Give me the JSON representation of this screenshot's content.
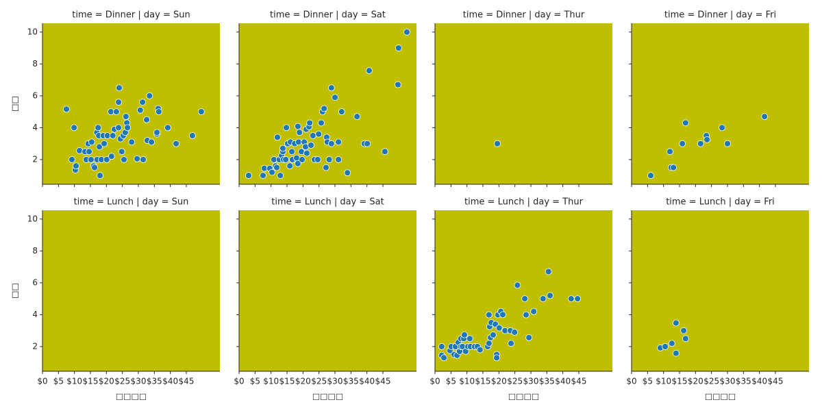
{
  "chart_data": [
    {
      "type": "scatter",
      "title": "time = Dinner | day = Sun",
      "color": "#1f77b4",
      "facecolor": "#bfbf00",
      "ylabel": "□□",
      "x": [
        7.5,
        9.2,
        9.9,
        10.3,
        10.5,
        11.6,
        13.3,
        13.7,
        14.3,
        14.6,
        15.2,
        15.4,
        16,
        16.3,
        17,
        17.1,
        17.4,
        17.6,
        17.8,
        18,
        18.4,
        19,
        19.3,
        20.1,
        20.3,
        21.4,
        21.6,
        22,
        22.5,
        23.1,
        23.8,
        23.8,
        24,
        24.4,
        24.8,
        25.3,
        25.5,
        25.9,
        26.1,
        26.4,
        26.6,
        27.9,
        29.6,
        30.6,
        31.3,
        31.5,
        32.6,
        32.8,
        33.5,
        34.1,
        35.8,
        35.8,
        36.2,
        36.4,
        39.2,
        41.8,
        46.9,
        49.7
      ],
      "values": [
        5.16,
        2,
        4,
        1.35,
        1.6,
        2.56,
        2.5,
        2,
        3,
        2.5,
        2,
        3.1,
        1.6,
        1.5,
        3.7,
        2,
        4,
        3.5,
        2.8,
        1,
        2,
        3.5,
        3,
        2,
        3.5,
        5,
        2.2,
        3.5,
        3.9,
        5,
        4,
        5.6,
        6.5,
        3.3,
        2.5,
        3.5,
        2,
        3.7,
        4.7,
        4.3,
        4,
        3.1,
        2.05,
        5.1,
        5.6,
        2,
        4.5,
        3.2,
        6,
        3.1,
        3.6,
        3.7,
        5.2,
        5,
        4,
        3,
        3.5,
        5
      ],
      "xlim": [
        0,
        55.5
      ],
      "ylim": [
        0.45,
        10.55
      ],
      "xticks": [
        0,
        5,
        10,
        15,
        20,
        25,
        30,
        35,
        40,
        45
      ],
      "yticks": [
        2,
        4,
        6,
        8,
        10
      ]
    },
    {
      "type": "scatter",
      "title": "time = Dinner | day = Sat",
      "color": "#1f77b4",
      "facecolor": "#bfbf00",
      "x": [
        3,
        7.5,
        7.9,
        9.6,
        10.3,
        10.9,
        11.4,
        11.8,
        12,
        12.6,
        12.9,
        13.3,
        13.7,
        13.7,
        13.9,
        14.6,
        14.8,
        15.2,
        15.9,
        16.1,
        16.5,
        16.7,
        17.4,
        18,
        18.4,
        18.4,
        18.6,
        18.9,
        19.5,
        19.7,
        20.4,
        20.8,
        21,
        21.2,
        21.9,
        22.1,
        22.5,
        23.1,
        23.6,
        24.6,
        24.9,
        25.7,
        26.1,
        26.6,
        27.2,
        27.4,
        27.6,
        28.2,
        28.9,
        28.9,
        30,
        31.1,
        31.1,
        32.1,
        33.9,
        36.9,
        39.2,
        40.1,
        40.7,
        45.6,
        49.7,
        49.9,
        52.5
      ],
      "values": [
        1,
        1,
        1.45,
        1.45,
        1.2,
        2,
        1.6,
        1.5,
        3.4,
        2,
        1,
        2.25,
        2.5,
        2.7,
        2,
        2,
        4,
        3,
        1.6,
        3.1,
        2.5,
        2,
        3,
        2.1,
        1.75,
        4.08,
        3.1,
        3.7,
        2.5,
        2,
        3.1,
        2.8,
        3.9,
        2.4,
        4.06,
        4.3,
        2.9,
        3.5,
        2,
        2,
        3.6,
        4.3,
        5,
        5.2,
        1.5,
        3.4,
        3.1,
        2,
        6.5,
        3,
        5.9,
        3.1,
        2,
        5,
        1.17,
        4.7,
        3,
        3,
        7.58,
        2.5,
        6.7,
        9,
        10
      ],
      "xlim": [
        0,
        55.5
      ],
      "ylim": [
        0.45,
        10.55
      ],
      "xticks": [
        0,
        5,
        10,
        15,
        20,
        25,
        30,
        35,
        40,
        45
      ],
      "yticks": [
        2,
        4,
        6,
        8,
        10
      ]
    },
    {
      "type": "scatter",
      "title": "time = Dinner | day = Thur",
      "color": "#1f77b4",
      "facecolor": "#bfbf00",
      "x": [
        19.5
      ],
      "values": [
        3
      ],
      "xlim": [
        0,
        55.5
      ],
      "ylim": [
        0.45,
        10.55
      ],
      "xticks": [
        0,
        5,
        10,
        15,
        20,
        25,
        30,
        35,
        40,
        45
      ],
      "yticks": [
        2,
        4,
        6,
        8,
        10
      ]
    },
    {
      "type": "scatter",
      "title": "time = Dinner | day = Fri",
      "color": "#1f77b4",
      "facecolor": "#bfbf00",
      "x": [
        6,
        12,
        12.4,
        13.1,
        15.9,
        16.9,
        21.6,
        23.4,
        23.6,
        28.3,
        30,
        41.6
      ],
      "values": [
        1,
        2.5,
        1.5,
        1.5,
        3,
        4.3,
        3,
        3.5,
        3.25,
        4,
        3,
        4.7
      ],
      "xlim": [
        0,
        55.5
      ],
      "ylim": [
        0.45,
        10.55
      ],
      "xticks": [
        0,
        5,
        10,
        15,
        20,
        25,
        30,
        35,
        40,
        45
      ],
      "yticks": [
        2,
        4,
        6,
        8,
        10
      ]
    },
    {
      "type": "scatter",
      "title": "time = Lunch | day = Sun",
      "color": "#1f77b4",
      "facecolor": "#bfbf00",
      "ylabel": "□□",
      "xlabel": "□□□□",
      "x": [],
      "values": [],
      "xlim": [
        0,
        55.5
      ],
      "ylim": [
        0.45,
        10.55
      ],
      "xticks": [
        {
          "value": 0,
          "label": "$0"
        },
        {
          "value": 5,
          "label": "$5"
        },
        {
          "value": 10,
          "label": "$10"
        },
        {
          "value": 15,
          "label": "$15"
        },
        {
          "value": 20,
          "label": "$20"
        },
        {
          "value": 25,
          "label": "$25"
        },
        {
          "value": 30,
          "label": "$30"
        },
        {
          "value": 35,
          "label": "$35"
        },
        {
          "value": 40,
          "label": "$40"
        },
        {
          "value": 45,
          "label": "$45"
        }
      ],
      "yticks": [
        2,
        4,
        6,
        8,
        10
      ]
    },
    {
      "type": "scatter",
      "title": "time = Lunch | day = Sat",
      "color": "#1f77b4",
      "facecolor": "#bfbf00",
      "xlabel": "□□□□",
      "x": [],
      "values": [],
      "xlim": [
        0,
        55.5
      ],
      "ylim": [
        0.45,
        10.55
      ],
      "xticks": [
        {
          "value": 0,
          "label": "$0"
        },
        {
          "value": 5,
          "label": "$5"
        },
        {
          "value": 10,
          "label": "$10"
        },
        {
          "value": 15,
          "label": "$15"
        },
        {
          "value": 20,
          "label": "$20"
        },
        {
          "value": 25,
          "label": "$25"
        },
        {
          "value": 30,
          "label": "$30"
        },
        {
          "value": 35,
          "label": "$35"
        },
        {
          "value": 40,
          "label": "$40"
        },
        {
          "value": 45,
          "label": "$45"
        }
      ],
      "yticks": [
        2,
        4,
        6,
        8,
        10
      ]
    },
    {
      "type": "scatter",
      "title": "time = Lunch | day = Thur",
      "color": "#1f77b4",
      "facecolor": "#bfbf00",
      "xlabel": "□□□□",
      "x": [
        2.1,
        2.1,
        2.8,
        4.7,
        5.1,
        6,
        6.4,
        6.9,
        7.3,
        7.7,
        8.1,
        8.1,
        8.6,
        9,
        9.2,
        9.6,
        10.3,
        10.9,
        11.1,
        12.4,
        13.3,
        14.1,
        16.5,
        16.9,
        16.9,
        17.1,
        17.4,
        17.6,
        18.2,
        18.9,
        19.3,
        19.3,
        19.7,
        20.1,
        20.6,
        21.2,
        21.9,
        23.6,
        23.8,
        24.9,
        25.8,
        28.1,
        28.5,
        29.4,
        30.9,
        33.8,
        35.5,
        36,
        42.6,
        44.6
      ],
      "values": [
        2,
        1.45,
        1.3,
        1.75,
        2,
        1.5,
        2,
        1.45,
        2.26,
        1.7,
        2.5,
        2,
        2,
        2.5,
        2.74,
        1.7,
        2,
        2.5,
        2,
        2,
        2,
        1.8,
        2,
        2.2,
        3.99,
        3.25,
        2.56,
        3.5,
        2.73,
        3.4,
        1.5,
        1.3,
        3.99,
        3.17,
        4.2,
        4,
        3,
        3,
        2.2,
        2.9,
        5.85,
        5,
        3.99,
        2.56,
        4.2,
        5,
        6.7,
        5.2,
        5,
        5
      ],
      "xlim": [
        0,
        55.5
      ],
      "ylim": [
        0.45,
        10.55
      ],
      "xticks": [
        {
          "value": 0,
          "label": "$0"
        },
        {
          "value": 5,
          "label": "$5"
        },
        {
          "value": 10,
          "label": "$10"
        },
        {
          "value": 15,
          "label": "$15"
        },
        {
          "value": 20,
          "label": "$20"
        },
        {
          "value": 25,
          "label": "$25"
        },
        {
          "value": 30,
          "label": "$30"
        },
        {
          "value": 35,
          "label": "$35"
        },
        {
          "value": 40,
          "label": "$40"
        },
        {
          "value": 45,
          "label": "$45"
        }
      ],
      "yticks": [
        2,
        4,
        6,
        8,
        10
      ]
    },
    {
      "type": "scatter",
      "title": "time = Lunch | day = Fri",
      "color": "#1f77b4",
      "facecolor": "#bfbf00",
      "xlabel": "□□□□",
      "x": [
        9,
        10.5,
        12.6,
        13.9,
        13.9,
        16.3,
        16.9
      ],
      "values": [
        1.92,
        2,
        2.2,
        3.48,
        1.58,
        3,
        2.5
      ],
      "xlim": [
        0,
        55.5
      ],
      "ylim": [
        0.45,
        10.55
      ],
      "xticks": [
        {
          "value": 0,
          "label": "$0"
        },
        {
          "value": 5,
          "label": "$5"
        },
        {
          "value": 10,
          "label": "$10"
        },
        {
          "value": 15,
          "label": "$15"
        },
        {
          "value": 20,
          "label": "$20"
        },
        {
          "value": 25,
          "label": "$25"
        },
        {
          "value": 30,
          "label": "$30"
        },
        {
          "value": 35,
          "label": "$35"
        },
        {
          "value": 40,
          "label": "$40"
        },
        {
          "value": 45,
          "label": "$45"
        }
      ],
      "yticks": [
        2,
        4,
        6,
        8,
        10
      ]
    }
  ]
}
